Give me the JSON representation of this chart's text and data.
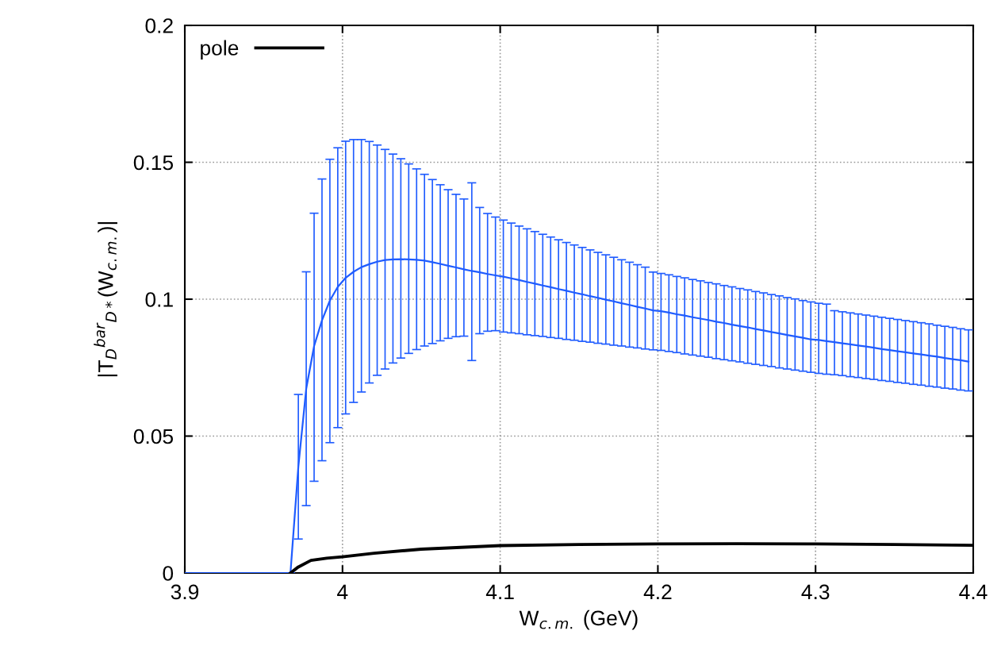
{
  "chart_data": {
    "type": "line",
    "xlabel": "W$_{c.m.}$ (GeV)",
    "ylabel": "|T$_{D}$$^{bar}$$_{D*}$(W$_{c.m.}$)|",
    "xlim": [
      3.9,
      4.4
    ],
    "xticks": [
      3.9,
      4,
      4.1,
      4.2,
      4.3,
      4.4
    ],
    "ylim": [
      0,
      0.2
    ],
    "yticks": [
      0,
      0.05,
      0.1,
      0.15,
      0.2
    ],
    "grid": true,
    "legend": "top left",
    "marker": "none",
    "line_style": "solid",
    "series": [
      {
        "color": "#1f5cff",
        "x": [
          3.902,
          3.907,
          3.912,
          3.917,
          3.922,
          3.927,
          3.932,
          3.937,
          3.942,
          3.947,
          3.952,
          3.957,
          3.962,
          3.967,
          3.972,
          3.977,
          3.982,
          3.987,
          3.992,
          3.997,
          4.002,
          4.007,
          4.012,
          4.017,
          4.022,
          4.027,
          4.032,
          4.037,
          4.042,
          4.047,
          4.052,
          4.057,
          4.062,
          4.067,
          4.072,
          4.077,
          4.082,
          4.087,
          4.092,
          4.097,
          4.102,
          4.107,
          4.112,
          4.117,
          4.122,
          4.127,
          4.132,
          4.137,
          4.142,
          4.147,
          4.152,
          4.157,
          4.162,
          4.167,
          4.172,
          4.177,
          4.182,
          4.187,
          4.192,
          4.197,
          4.202,
          4.207,
          4.212,
          4.217,
          4.222,
          4.227,
          4.232,
          4.237,
          4.242,
          4.247,
          4.252,
          4.257,
          4.262,
          4.267,
          4.272,
          4.277,
          4.282,
          4.287,
          4.292,
          4.297,
          4.302,
          4.307,
          4.312,
          4.317,
          4.322,
          4.327,
          4.332,
          4.337,
          4.342,
          4.347,
          4.352,
          4.357,
          4.362,
          4.367,
          4.372,
          4.377,
          4.382,
          4.387,
          4.392,
          4.397
        ],
        "values": [
          0,
          0,
          0,
          0,
          0,
          0,
          0,
          0,
          0,
          0,
          0,
          0,
          0,
          0,
          0.0388,
          0.0673,
          0.0829,
          0.0923,
          0.0995,
          0.1045,
          0.1078,
          0.11,
          0.1117,
          0.1128,
          0.1137,
          0.1143,
          0.1145,
          0.1146,
          0.1145,
          0.1144,
          0.1141,
          0.1135,
          0.1129,
          0.1122,
          0.1116,
          0.1109,
          0.1103,
          0.1098,
          0.1092,
          0.1087,
          0.1082,
          0.1076,
          0.107,
          0.1063,
          0.1057,
          0.105,
          0.1044,
          0.1037,
          0.1031,
          0.1024,
          0.1018,
          0.1011,
          0.1005,
          0.0998,
          0.0992,
          0.0985,
          0.0979,
          0.0972,
          0.0966,
          0.0959,
          0.0956,
          0.0951,
          0.0945,
          0.094,
          0.0934,
          0.0929,
          0.0924,
          0.0918,
          0.0913,
          0.0907,
          0.0902,
          0.0897,
          0.0891,
          0.0886,
          0.088,
          0.0875,
          0.0869,
          0.0864,
          0.0859,
          0.0853,
          0.0851,
          0.0847,
          0.0843,
          0.0839,
          0.0835,
          0.0831,
          0.0827,
          0.0823,
          0.0818,
          0.0814,
          0.081,
          0.0806,
          0.0802,
          0.0798,
          0.0794,
          0.079,
          0.0785,
          0.0781,
          0.0777,
          0.0772
        ],
        "errors": [
          [
            0,
            0
          ],
          [
            0,
            0
          ],
          [
            0,
            0
          ],
          [
            0,
            0
          ],
          [
            0,
            0
          ],
          [
            0,
            0
          ],
          [
            0,
            0
          ],
          [
            0,
            0
          ],
          [
            0,
            0
          ],
          [
            0,
            0
          ],
          [
            0,
            0
          ],
          [
            0,
            0
          ],
          [
            0,
            0
          ],
          [
            0,
            0
          ],
          [
            0.0124,
            0.0652
          ],
          [
            0.0246,
            0.11
          ],
          [
            0.0335,
            0.1314
          ],
          [
            0.041,
            0.1439
          ],
          [
            0.0476,
            0.1511
          ],
          [
            0.0531,
            0.1553
          ],
          [
            0.0581,
            0.1577
          ],
          [
            0.0623,
            0.1583
          ],
          [
            0.0661,
            0.1583
          ],
          [
            0.0694,
            0.1576
          ],
          [
            0.0722,
            0.1563
          ],
          [
            0.0745,
            0.1547
          ],
          [
            0.0767,
            0.153
          ],
          [
            0.0785,
            0.1513
          ],
          [
            0.0802,
            0.1494
          ],
          [
            0.0816,
            0.1476
          ],
          [
            0.0829,
            0.1456
          ],
          [
            0.0838,
            0.1437
          ],
          [
            0.0848,
            0.1418
          ],
          [
            0.0857,
            0.14
          ],
          [
            0.0863,
            0.1383
          ],
          [
            0.0865,
            0.1366
          ],
          [
            0.0776,
            0.1425
          ],
          [
            0.0874,
            0.1335
          ],
          [
            0.0883,
            0.1313
          ],
          [
            0.0885,
            0.13
          ],
          [
            0.088,
            0.1289
          ],
          [
            0.0877,
            0.1278
          ],
          [
            0.0874,
            0.1267
          ],
          [
            0.087,
            0.1257
          ],
          [
            0.0867,
            0.1247
          ],
          [
            0.0864,
            0.1237
          ],
          [
            0.086,
            0.1227
          ],
          [
            0.0857,
            0.1217
          ],
          [
            0.0853,
            0.1207
          ],
          [
            0.085,
            0.1198
          ],
          [
            0.0846,
            0.1189
          ],
          [
            0.0843,
            0.118
          ],
          [
            0.0839,
            0.1171
          ],
          [
            0.0836,
            0.1162
          ],
          [
            0.0832,
            0.1153
          ],
          [
            0.0829,
            0.1144
          ],
          [
            0.0825,
            0.1135
          ],
          [
            0.0822,
            0.1126
          ],
          [
            0.0818,
            0.1117
          ],
          [
            0.0815,
            0.1099
          ],
          [
            0.0813,
            0.1094
          ],
          [
            0.0809,
            0.1089
          ],
          [
            0.0805,
            0.1083
          ],
          [
            0.08,
            0.1078
          ],
          [
            0.0796,
            0.1072
          ],
          [
            0.0792,
            0.1067
          ],
          [
            0.0788,
            0.1061
          ],
          [
            0.0783,
            0.1056
          ],
          [
            0.0779,
            0.105
          ],
          [
            0.0775,
            0.1045
          ],
          [
            0.0771,
            0.1039
          ],
          [
            0.0766,
            0.1034
          ],
          [
            0.0762,
            0.1028
          ],
          [
            0.0758,
            0.1023
          ],
          [
            0.0754,
            0.1017
          ],
          [
            0.0749,
            0.1012
          ],
          [
            0.0745,
            0.1006
          ],
          [
            0.0741,
            0.1001
          ],
          [
            0.0737,
            0.0995
          ],
          [
            0.0733,
            0.099
          ],
          [
            0.0729,
            0.0985
          ],
          [
            0.0726,
            0.0982
          ],
          [
            0.0724,
            0.0958
          ],
          [
            0.0721,
            0.0954
          ],
          [
            0.0717,
            0.095
          ],
          [
            0.0714,
            0.0946
          ],
          [
            0.071,
            0.0942
          ],
          [
            0.0707,
            0.0938
          ],
          [
            0.0703,
            0.0934
          ],
          [
            0.07,
            0.093
          ],
          [
            0.0696,
            0.0926
          ],
          [
            0.0693,
            0.0922
          ],
          [
            0.0689,
            0.0918
          ],
          [
            0.0686,
            0.0914
          ],
          [
            0.0682,
            0.091
          ],
          [
            0.0679,
            0.0905
          ],
          [
            0.0675,
            0.0901
          ],
          [
            0.0672,
            0.0897
          ],
          [
            0.0668,
            0.0892
          ],
          [
            0.0665,
            0.0888
          ]
        ]
      },
      {
        "name": "pole",
        "color": "#000000",
        "x": [
          3.967,
          3.972,
          3.98,
          3.99,
          4.0,
          4.02,
          4.05,
          4.1,
          4.15,
          4.2,
          4.25,
          4.3,
          4.35,
          4.4
        ],
        "values": [
          0,
          0.0022,
          0.0046,
          0.0054,
          0.0059,
          0.0072,
          0.0087,
          0.01,
          0.0104,
          0.0106,
          0.0107,
          0.0106,
          0.0104,
          0.0101
        ]
      }
    ]
  }
}
